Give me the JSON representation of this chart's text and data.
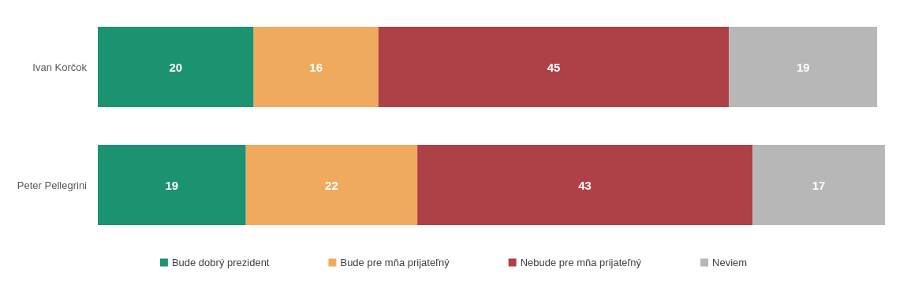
{
  "chart_data": {
    "type": "bar",
    "orientation": "horizontal",
    "stacked": true,
    "categories": [
      "Ivan Korčok",
      "Peter Pellegrini"
    ],
    "series": [
      {
        "name": "Bude dobrý prezident",
        "color": "#1b9270",
        "values": [
          20,
          19
        ]
      },
      {
        "name": "Bude pre mňa prijateľný",
        "color": "#f0aa5e",
        "values": [
          16,
          22
        ]
      },
      {
        "name": "Nebude pre mňa prijateľný",
        "color": "#ae4148",
        "values": [
          45,
          43
        ]
      },
      {
        "name": "Neviem",
        "color": "#b7b7b7",
        "values": [
          19,
          17
        ]
      }
    ],
    "data_labels": true,
    "legend": "bottom"
  }
}
